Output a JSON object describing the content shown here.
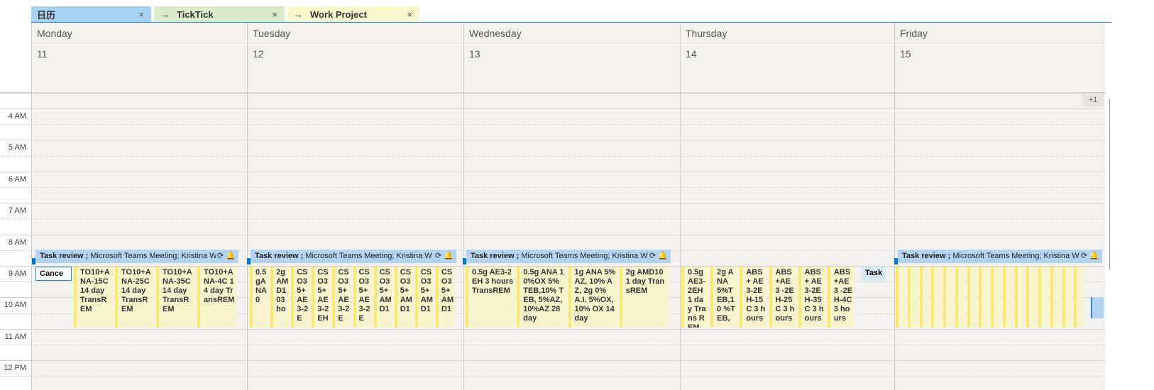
{
  "tabs": [
    {
      "label": "日历",
      "arrow": false,
      "color": "#a8d2f2"
    },
    {
      "label": "TickTick",
      "arrow": true,
      "color": "#d9ebcb"
    },
    {
      "label": "Work Project",
      "arrow": true,
      "color": "#fdf9cf"
    }
  ],
  "tab_close": "×",
  "tab_arrow": "→",
  "days": [
    {
      "name": "Monday",
      "num": "11"
    },
    {
      "name": "Tuesday",
      "num": "12"
    },
    {
      "name": "Wednesday",
      "num": "13"
    },
    {
      "name": "Thursday",
      "num": "14"
    },
    {
      "name": "Friday",
      "num": "15"
    }
  ],
  "more_badge": "+1",
  "times": [
    "4 AM",
    "5 AM",
    "6 AM",
    "7 AM",
    "8 AM",
    "9 AM",
    "10 AM",
    "11 AM",
    "12 PM"
  ],
  "review": {
    "title": "Task review ;",
    "rest": " Microsoft Teams Meeting; Kristina W",
    "rest_friday": " Microsoft Teams Meeting; Kristina W.",
    "icons": "⟳ 🔔"
  },
  "monday_cancel": "Cance",
  "thursday_task": "Task",
  "events": [
    [
      "TO10+ANA-15C 14 day TransREM",
      "TO10+ANA-25C 14 day TransREM",
      "TO10+ANA-35C 14 day TransREM",
      "TO10+ANA-4C 14 day TransREM"
    ],
    [
      "0.5gANA0",
      "2gAMD103 ho",
      "CSO35+AE3-2E",
      "CSO35+AE3-2EH",
      "CSO35+AE3-2E",
      "CSO35+AE3-2E",
      "CSO35+AMD1",
      "CSO35+AMD1",
      "CSO35+AMD1",
      "CSO35+AMD1"
    ],
    [
      "0.5g AE3-2EH 3 hours TransREM",
      "0.5g ANA 10%OX 5% TEB,10% TEB, 5%AZ, 10%AZ 28 day",
      "1g ANA 5% AZ, 10% AZ, 2g 0% A.I. 5%OX,10% OX 14 day",
      "2g AMD10 1 day TransREM"
    ],
    [
      "0.5g AE3-2EH 1 day Trans REM",
      "2g ANA 5%TEB,10 %TEB,",
      "ABS+ AE3-2EH-15C 3 hours",
      "ABS +AE3 -2EH-25C 3 hours",
      "ABS+ AE3-2EH-35C 3 hours",
      "ABS +AE3 -2EH-4C 3 hours"
    ],
    [
      "",
      "",
      "",
      "",
      "",
      "",
      "",
      "",
      "",
      "",
      "",
      "",
      "",
      "",
      "",
      ""
    ]
  ]
}
